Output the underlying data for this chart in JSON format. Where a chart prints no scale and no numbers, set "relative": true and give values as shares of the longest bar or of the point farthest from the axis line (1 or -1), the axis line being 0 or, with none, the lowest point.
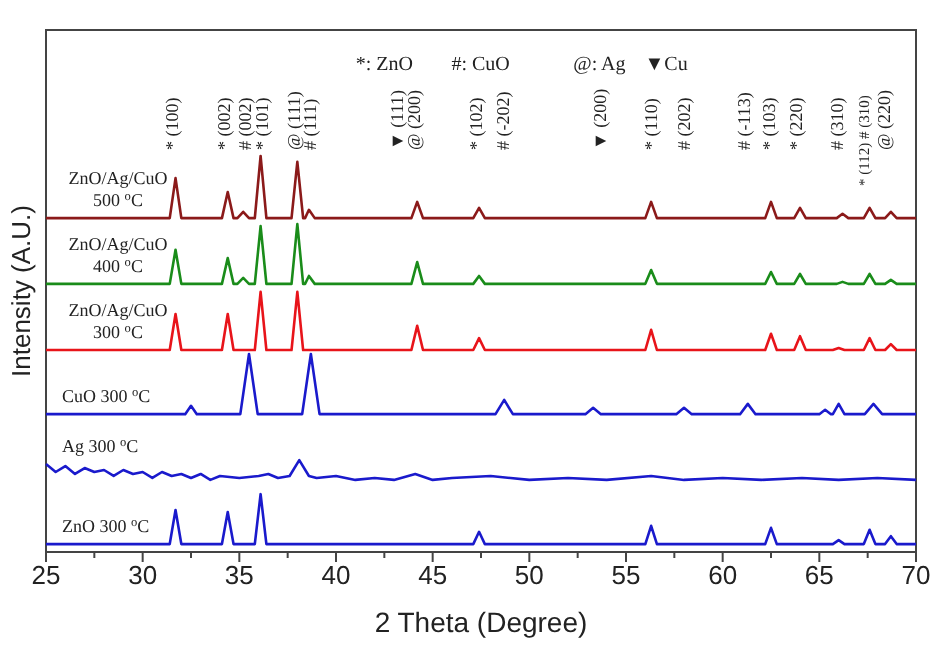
{
  "chart_data": {
    "type": "line",
    "relative": true,
    "xlabel": "2 Theta (Degree)",
    "ylabel": "Intensity (A.U.)",
    "xlim": [
      25,
      70
    ],
    "xticks": [
      25,
      {
        "value": 27.5,
        "label": null
      },
      30,
      {
        "value": 32.5,
        "label": null
      },
      35,
      {
        "value": 37.5,
        "label": null
      },
      40,
      {
        "value": 42.5,
        "label": null
      },
      45,
      {
        "value": 47.5,
        "label": null
      },
      50,
      {
        "value": 52.5,
        "label": null
      },
      55,
      {
        "value": 57.5,
        "label": null
      },
      60,
      {
        "value": 62.5,
        "label": null
      },
      65,
      {
        "value": 67.5,
        "label": null
      },
      70
    ],
    "tick_labels": "x",
    "grid": false,
    "legend": false,
    "line_style": "solid",
    "marker": "none",
    "series": [
      {
        "name": "ZnO/Ag/CuO\n500 $^{o}$C",
        "color": "#8b1a1a",
        "x": [
          25,
          31.4,
          31.7,
          32.0,
          34.1,
          34.4,
          34.7,
          34.9,
          35.2,
          35.5,
          35.8,
          36.1,
          36.4,
          37.7,
          38.0,
          38.3,
          38.4,
          38.6,
          38.9,
          43.9,
          44.2,
          44.5,
          47.1,
          47.4,
          47.7,
          56.0,
          56.3,
          56.6,
          62.2,
          62.5,
          62.8,
          63.7,
          64.0,
          64.3,
          65.9,
          66.2,
          66.5,
          67.3,
          67.6,
          67.9,
          68.4,
          68.7,
          69.0,
          70
        ],
        "values": [
          0.843,
          0.843,
          0.944,
          0.843,
          0.843,
          0.909,
          0.843,
          0.843,
          0.859,
          0.843,
          0.843,
          1,
          0.843,
          0.843,
          0.985,
          0.843,
          0.843,
          0.864,
          0.843,
          0.843,
          0.884,
          0.843,
          0.843,
          0.869,
          0.843,
          0.843,
          0.884,
          0.843,
          0.843,
          0.884,
          0.843,
          0.843,
          0.869,
          0.843,
          0.843,
          0.854,
          0.843,
          0.843,
          0.869,
          0.843,
          0.843,
          0.859,
          0.843,
          0.843
        ]
      },
      {
        "name": "ZnO/Ag/CuO\n400 $^{o}$C",
        "color": "#1a8c1a",
        "x": [
          25,
          31.4,
          31.7,
          32.0,
          34.1,
          34.4,
          34.7,
          34.9,
          35.2,
          35.5,
          35.8,
          36.1,
          36.4,
          37.7,
          38.0,
          38.3,
          38.4,
          38.6,
          38.9,
          43.9,
          44.2,
          44.5,
          47.1,
          47.4,
          47.7,
          56.0,
          56.3,
          56.6,
          62.2,
          62.5,
          62.8,
          63.7,
          64.0,
          64.3,
          65.9,
          66.2,
          66.5,
          67.3,
          67.6,
          67.9,
          68.4,
          68.7,
          69.0,
          70
        ],
        "values": [
          0.677,
          0.677,
          0.763,
          0.677,
          0.677,
          0.742,
          0.677,
          0.677,
          0.692,
          0.677,
          0.677,
          0.823,
          0.677,
          0.677,
          0.828,
          0.677,
          0.677,
          0.697,
          0.677,
          0.677,
          0.732,
          0.677,
          0.677,
          0.697,
          0.677,
          0.677,
          0.712,
          0.677,
          0.677,
          0.707,
          0.677,
          0.677,
          0.702,
          0.677,
          0.677,
          0.682,
          0.677,
          0.677,
          0.702,
          0.677,
          0.677,
          0.687,
          0.677,
          0.677
        ]
      },
      {
        "name": "ZnO/Ag/CuO\n300 $^{o}$C",
        "color": "#e8141a",
        "x": [
          25,
          31.4,
          31.7,
          32.0,
          34.1,
          34.4,
          34.7,
          35.8,
          36.1,
          36.4,
          37.7,
          38.0,
          38.3,
          43.9,
          44.2,
          44.5,
          47.1,
          47.4,
          47.7,
          56.0,
          56.3,
          56.6,
          62.2,
          62.5,
          62.8,
          63.7,
          64.0,
          64.3,
          65.7,
          66.0,
          66.3,
          67.3,
          67.6,
          67.9,
          68.4,
          68.7,
          69.0,
          70
        ],
        "values": [
          0.51,
          0.51,
          0.601,
          0.51,
          0.51,
          0.601,
          0.51,
          0.51,
          0.657,
          0.51,
          0.51,
          0.657,
          0.51,
          0.51,
          0.571,
          0.51,
          0.51,
          0.54,
          0.51,
          0.51,
          0.561,
          0.51,
          0.51,
          0.551,
          0.51,
          0.51,
          0.545,
          0.51,
          0.51,
          0.515,
          0.51,
          0.51,
          0.54,
          0.51,
          0.51,
          0.525,
          0.51,
          0.51
        ]
      },
      {
        "name": "CuO 300 $^{o}$C",
        "color": "#1a1acc",
        "x": [
          25,
          32.2,
          32.5,
          32.8,
          35.05,
          35.5,
          35.95,
          38.25,
          38.7,
          39.15,
          48.25,
          48.7,
          49.15,
          52.9,
          53.3,
          53.7,
          57.6,
          58.0,
          58.4,
          60.9,
          61.3,
          61.7,
          65.0,
          65.3,
          65.6,
          65.7,
          66.0,
          66.3,
          67.35,
          67.8,
          68.25,
          70
        ],
        "values": [
          0.348,
          0.348,
          0.369,
          0.348,
          0.348,
          0.5,
          0.348,
          0.348,
          0.5,
          0.348,
          0.348,
          0.384,
          0.348,
          0.348,
          0.364,
          0.348,
          0.348,
          0.364,
          0.348,
          0.348,
          0.374,
          0.348,
          0.348,
          0.359,
          0.348,
          0.348,
          0.374,
          0.348,
          0.348,
          0.374,
          0.348,
          0.348
        ]
      },
      {
        "name": "Ag 300 $^{o}$C",
        "color": "#1a1acc",
        "x": [
          25,
          25.5,
          26,
          26.5,
          27,
          27.5,
          28,
          28.5,
          29,
          29.5,
          30,
          30.5,
          31,
          31.5,
          32,
          32.5,
          33,
          33.5,
          34,
          35,
          36,
          36.5,
          37,
          37.6,
          38.1,
          38.6,
          39,
          40,
          41,
          42,
          43,
          44.1,
          45,
          46,
          48,
          50,
          52,
          54,
          56.3,
          58,
          60,
          62,
          64.1,
          66,
          68,
          70
        ],
        "values": [
          0.222,
          0.202,
          0.217,
          0.197,
          0.212,
          0.202,
          0.207,
          0.192,
          0.207,
          0.197,
          0.202,
          0.187,
          0.202,
          0.192,
          0.197,
          0.187,
          0.197,
          0.182,
          0.192,
          0.187,
          0.192,
          0.197,
          0.187,
          0.192,
          0.232,
          0.192,
          0.187,
          0.192,
          0.182,
          0.187,
          0.182,
          0.197,
          0.182,
          0.187,
          0.192,
          0.182,
          0.187,
          0.182,
          0.192,
          0.182,
          0.187,
          0.182,
          0.187,
          0.182,
          0.187,
          0.182
        ]
      },
      {
        "name": "ZnO 300 $^{o}$C",
        "color": "#1a1acc",
        "x": [
          25,
          31.4,
          31.7,
          32.0,
          34.1,
          34.4,
          34.7,
          35.8,
          36.1,
          36.4,
          47.1,
          47.4,
          47.7,
          56.0,
          56.3,
          56.6,
          62.2,
          62.5,
          62.8,
          65.7,
          66.0,
          66.3,
          67.3,
          67.6,
          67.9,
          68.4,
          68.7,
          69.0,
          70
        ],
        "values": [
          0.02,
          0.02,
          0.106,
          0.02,
          0.02,
          0.101,
          0.02,
          0.02,
          0.146,
          0.02,
          0.02,
          0.051,
          0.02,
          0.02,
          0.066,
          0.02,
          0.02,
          0.061,
          0.02,
          0.02,
          0.03,
          0.02,
          0.02,
          0.056,
          0.02,
          0.02,
          0.04,
          0.02,
          0.02
        ]
      }
    ],
    "annotations": [
      "*: ZnO",
      "#: CuO",
      "@: Ag",
      "▼Cu",
      "* (100)",
      "* (002)",
      "# (002)",
      "* (101)",
      "@ (111)",
      "# (111)",
      "▼ (111)",
      "@ (200)",
      "* (102)",
      "# (-202)",
      "▼ (200)",
      "* (110)",
      "# (202)",
      "# (-113)",
      "* (103)",
      "* (220)",
      "# (310)",
      "* (112) # (310)",
      "@ (220)"
    ]
  }
}
